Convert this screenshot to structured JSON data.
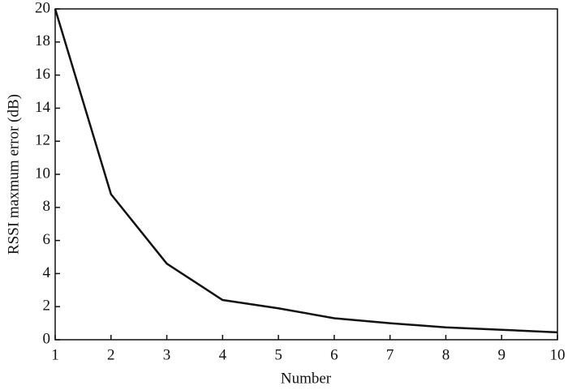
{
  "chart_data": {
    "type": "line",
    "x_label": "Number",
    "y_label": "RSSI maxmum error (dB)",
    "x": [
      1,
      2,
      3,
      4,
      5,
      6,
      7,
      8,
      9,
      10
    ],
    "series": [
      {
        "color": "#111111",
        "values": [
          20,
          8.8,
          4.6,
          2.4,
          1.9,
          1.3,
          1.0,
          0.75,
          0.6,
          0.45
        ]
      }
    ],
    "xlim": [
      1,
      10
    ],
    "xticks": [
      1,
      2,
      3,
      4,
      5,
      6,
      7,
      8,
      9,
      10
    ],
    "ylim": [
      0,
      20
    ],
    "yticks": [
      0,
      2,
      4,
      6,
      8,
      10,
      12,
      14,
      16,
      18,
      20
    ]
  }
}
